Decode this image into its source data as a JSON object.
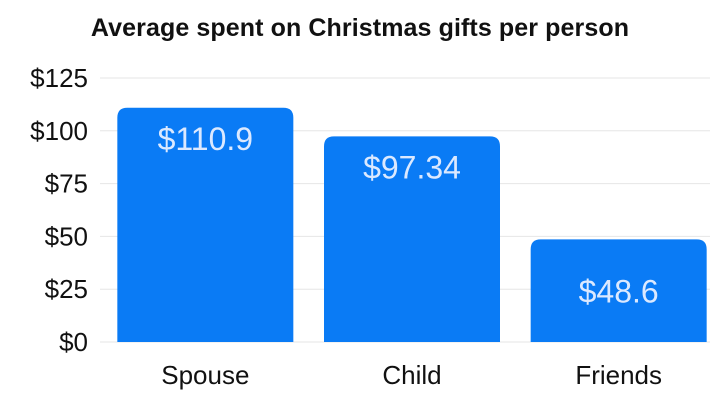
{
  "chart_data": {
    "type": "bar",
    "title": "Average spent on Christmas gifts per person",
    "xlabel": "",
    "ylabel": "",
    "categories": [
      "Spouse",
      "Child",
      "Friends"
    ],
    "values": [
      110.9,
      97.34,
      48.6
    ],
    "data_labels": [
      "$110.9",
      "$97.34",
      "$48.6"
    ],
    "ylim": [
      0,
      125
    ],
    "yticks": [
      0,
      25,
      50,
      75,
      100,
      125
    ],
    "ytick_labels": [
      "$0",
      "$25",
      "$50",
      "$75",
      "$100",
      "$125"
    ],
    "grid": true,
    "legend": "none",
    "colors": {
      "bar": "#0a7bf5",
      "data_label": "#dbe9ff",
      "grid": "#e6e6e6",
      "text": "#111111"
    }
  }
}
